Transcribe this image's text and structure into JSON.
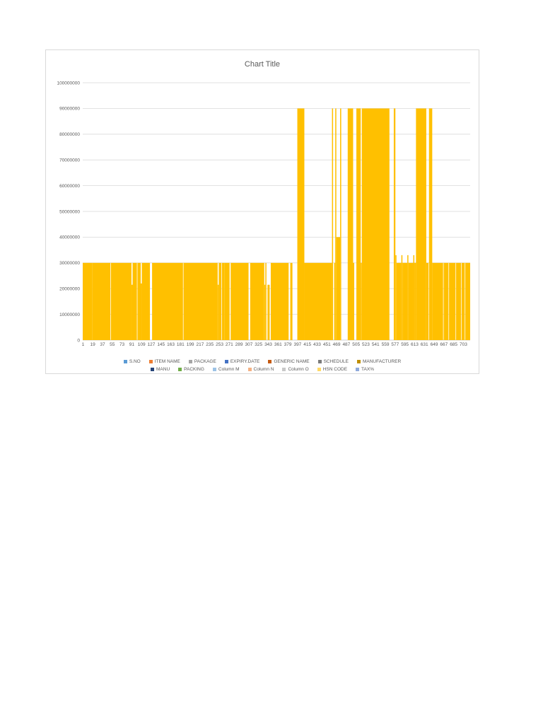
{
  "chart_data": {
    "type": "bar",
    "title": "Chart Title",
    "ylim": [
      0,
      100000000
    ],
    "yticks": [
      "0",
      "10000000",
      "20000000",
      "30000000",
      "40000000",
      "50000000",
      "60000000",
      "70000000",
      "80000000",
      "90000000",
      "100000000"
    ],
    "xtick_labels": [
      "1",
      "19",
      "37",
      "55",
      "73",
      "91",
      "109",
      "127",
      "145",
      "163",
      "181",
      "199",
      "217",
      "235",
      "253",
      "271",
      "289",
      "307",
      "325",
      "343",
      "361",
      "379",
      "397",
      "415",
      "433",
      "451",
      "469",
      "487",
      "505",
      "523",
      "541",
      "559",
      "577",
      "595",
      "613",
      "631",
      "649",
      "667",
      "685",
      "703"
    ],
    "x_count": 715,
    "grid": true,
    "legend_position": "bottom",
    "bar_color": "#ffc000",
    "legend": [
      {
        "name": "S.NO",
        "color": "#5b9bd5"
      },
      {
        "name": "ITEM NAME",
        "color": "#ed7d31"
      },
      {
        "name": "PACKAGE",
        "color": "#a5a5a5"
      },
      {
        "name": "EXPIRY.DATE",
        "color": "#4472c4"
      },
      {
        "name": "GENERIC NAME",
        "color": "#c55a11"
      },
      {
        "name": "SCHEDULE",
        "color": "#7b7b7b"
      },
      {
        "name": "MANUFACTURER",
        "color": "#bf8f00"
      },
      {
        "name": "MANU",
        "color": "#264478"
      },
      {
        "name": "PACKING",
        "color": "#70ad47"
      },
      {
        "name": "Column M",
        "color": "#9dc3e6"
      },
      {
        "name": "Column N",
        "color": "#f4b183"
      },
      {
        "name": "Column O",
        "color": "#c9c9c9"
      },
      {
        "name": "HSN CODE",
        "color": "#ffd966"
      },
      {
        "name": "TAX%",
        "color": "#8faadc"
      }
    ],
    "series": [
      {
        "name": "HSN CODE",
        "segments": [
          {
            "x": [
              1,
              18
            ],
            "value": 30000000
          },
          {
            "x": [
              19,
              51
            ],
            "value": 30000000
          },
          {
            "x": [
              53,
              90
            ],
            "value": 30000000
          },
          {
            "x": [
              91,
              92
            ],
            "value": 21500000
          },
          {
            "x": [
              93,
              100
            ],
            "value": 30000000
          },
          {
            "x": [
              102,
              107
            ],
            "value": 30000000
          },
          {
            "x": [
              108,
              109
            ],
            "value": 22000000
          },
          {
            "x": [
              110,
              124
            ],
            "value": 30000000
          },
          {
            "x": [
              129,
              185
            ],
            "value": 30000000
          },
          {
            "x": [
              187,
              249
            ],
            "value": 30000000
          },
          {
            "x": [
              250,
              251
            ],
            "value": 21500000
          },
          {
            "x": [
              252,
              256
            ],
            "value": 30000000
          },
          {
            "x": [
              258,
              262
            ],
            "value": 30000000
          },
          {
            "x": [
              263,
              271
            ],
            "value": 30000000
          },
          {
            "x": [
              274,
              306
            ],
            "value": 30000000
          },
          {
            "x": [
              310,
              335
            ],
            "value": 30000000
          },
          {
            "x": [
              336,
              337
            ],
            "value": 21500000
          },
          {
            "x": [
              338,
              339
            ],
            "value": 30000000
          },
          {
            "x": [
              342,
              345
            ],
            "value": 21500000
          },
          {
            "x": [
              348,
              380
            ],
            "value": 30000000
          },
          {
            "x": [
              384,
              387
            ],
            "value": 30000000
          },
          {
            "x": [
              397,
              409
            ],
            "value": 90000000
          },
          {
            "x": [
              410,
              460
            ],
            "value": 30000000
          },
          {
            "x": [
              461,
              462
            ],
            "value": 90000000
          },
          {
            "x": [
              465,
              466
            ],
            "value": 30000000
          },
          {
            "x": [
              467,
              468
            ],
            "value": 90000000
          },
          {
            "x": [
              469,
              475
            ],
            "value": 40000000
          },
          {
            "x": [
              476,
              477
            ],
            "value": 90000000
          },
          {
            "x": [
              490,
              499
            ],
            "value": 90000000
          },
          {
            "x": [
              500,
              501
            ],
            "value": 30000000
          },
          {
            "x": [
              506,
              513
            ],
            "value": 90000000
          },
          {
            "x": [
              514,
              515
            ],
            "value": 30000000
          },
          {
            "x": [
              516,
              566
            ],
            "value": 90000000
          },
          {
            "x": [
              575,
              577
            ],
            "value": 90000000
          },
          {
            "x": [
              578,
              579
            ],
            "value": 33000000
          },
          {
            "x": [
              580,
              588
            ],
            "value": 30000000
          },
          {
            "x": [
              589,
              590
            ],
            "value": 33000000
          },
          {
            "x": [
              591,
              599
            ],
            "value": 30000000
          },
          {
            "x": [
              600,
              601
            ],
            "value": 33000000
          },
          {
            "x": [
              602,
              610
            ],
            "value": 30000000
          },
          {
            "x": [
              611,
              612
            ],
            "value": 33000000
          },
          {
            "x": [
              613,
              615
            ],
            "value": 30000000
          },
          {
            "x": [
              616,
              634
            ],
            "value": 90000000
          },
          {
            "x": [
              635,
              638
            ],
            "value": 30000000
          },
          {
            "x": [
              640,
              645
            ],
            "value": 90000000
          },
          {
            "x": [
              646,
              665
            ],
            "value": 30000000
          },
          {
            "x": [
              667,
              668
            ],
            "value": 30000000
          },
          {
            "x": [
              669,
              675
            ],
            "value": 30000000
          },
          {
            "x": [
              677,
              688
            ],
            "value": 30000000
          },
          {
            "x": [
              690,
              698
            ],
            "value": 30000000
          },
          {
            "x": [
              700,
              705
            ],
            "value": 30000000
          },
          {
            "x": [
              707,
              715
            ],
            "value": 30000000
          }
        ]
      }
    ]
  }
}
